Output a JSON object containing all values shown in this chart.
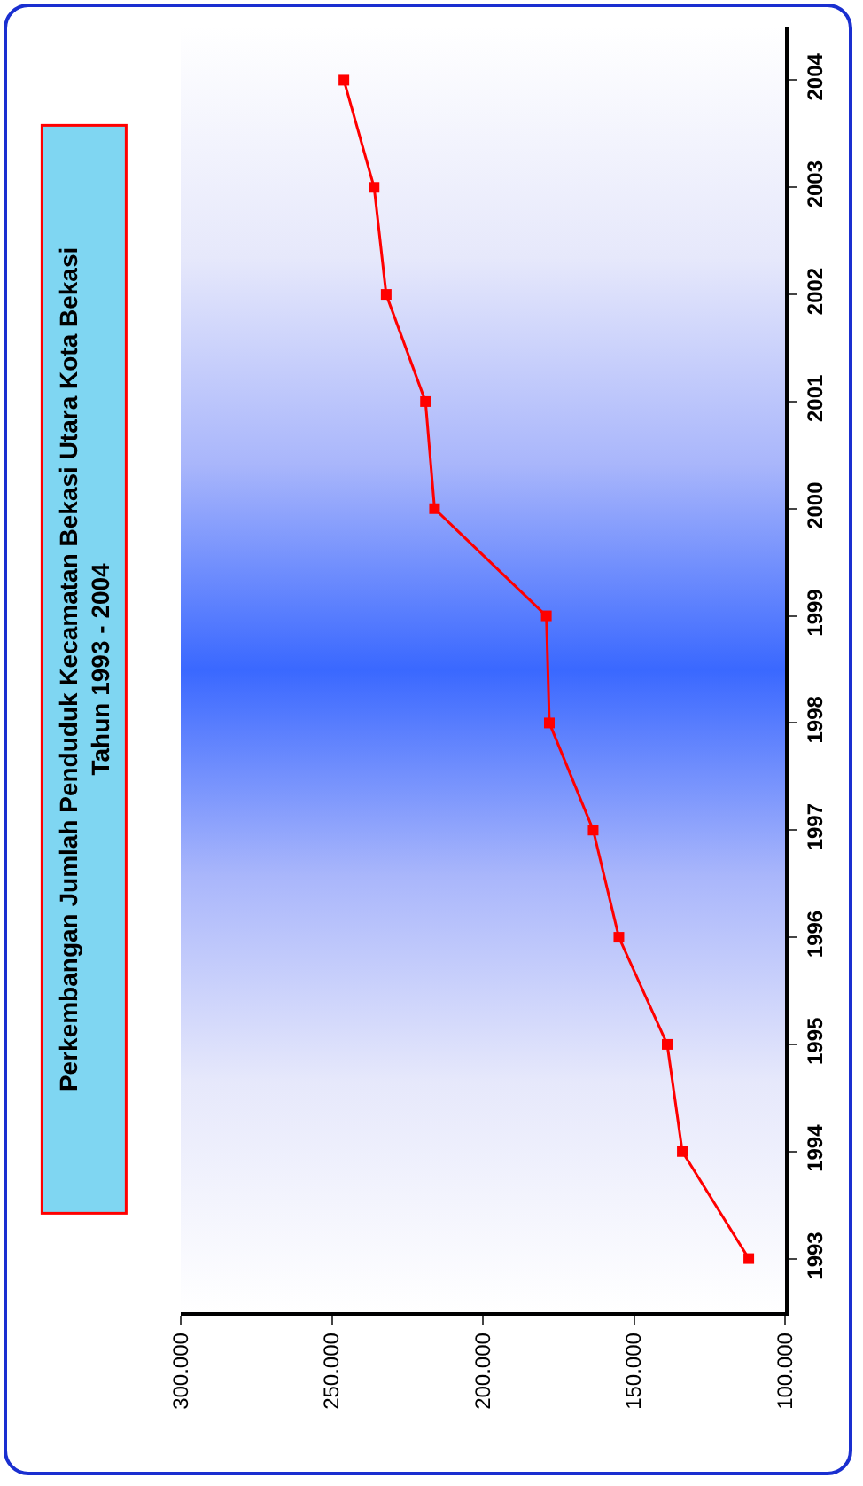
{
  "chart_data": {
    "type": "line",
    "orientation": "horizontal",
    "title": "Perkembangan Jumlah Penduduk Kecamatan Bekasi Utara Kota Bekasi",
    "subtitle": "Tahun 1993 - 2004",
    "categories": [
      "2004",
      "2003",
      "2002",
      "2001",
      "2000",
      "1999",
      "1998",
      "1997",
      "1996",
      "1995",
      "1994",
      "1993"
    ],
    "values": [
      246000,
      236000,
      232000,
      219000,
      216000,
      179000,
      178000,
      163500,
      155000,
      139000,
      134000,
      112000
    ],
    "color": "#ff0000",
    "marker": "square",
    "line_style": "solid",
    "xlim": [
      300000,
      100000
    ],
    "xticks": [
      {
        "value": 300000,
        "label": "300.000"
      },
      {
        "value": 250000,
        "label": "250.000"
      },
      {
        "value": 200000,
        "label": "200.000"
      },
      {
        "value": 150000,
        "label": "150.000"
      },
      {
        "value": 100000,
        "label": "100.000"
      }
    ],
    "grid": false
  }
}
